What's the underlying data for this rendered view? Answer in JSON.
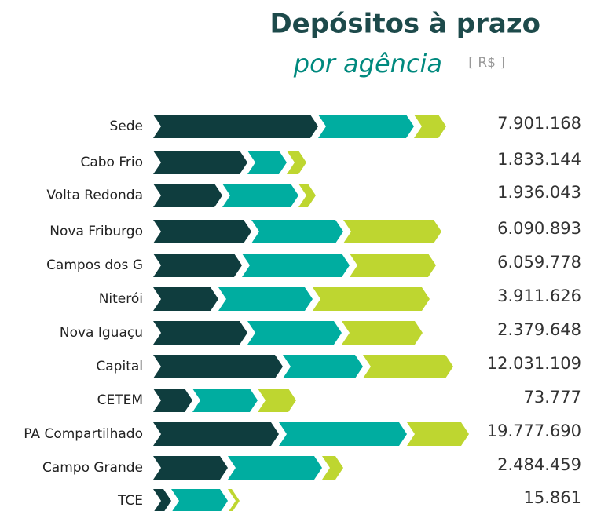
{
  "chart_data": {
    "type": "bar",
    "title": "Depósitos à prazo",
    "subtitle": "por agência",
    "unit": "[ R$ ]",
    "categories": [
      "Sede",
      "Cabo Frio",
      "Volta Redonda",
      "Nova Friburgo",
      "Campos dos G",
      "Niterói",
      "Nova Iguaçu",
      "Capital",
      "CETEM",
      "PA Compartilhado",
      "Campo Grande",
      "TCE"
    ],
    "series": [
      {
        "color": "#0f3d3e",
        "values": [
          210,
          120,
          88,
          125,
          113,
          83,
          120,
          165,
          50,
          160,
          95,
          23
        ]
      },
      {
        "color": "#00ada0",
        "values": [
          122,
          50,
          97,
          117,
          137,
          120,
          120,
          102,
          83,
          163,
          120,
          72
        ]
      },
      {
        "color": "#bed630",
        "values": [
          41,
          25,
          22,
          125,
          110,
          149,
          103,
          115,
          49,
          79,
          27,
          15
        ]
      }
    ],
    "xlim": [
      0,
      400
    ],
    "totals": [
      7901168,
      1833144,
      1936043,
      6090893,
      6059778,
      3911626,
      2379648,
      12031109,
      73777,
      19777690,
      2484459,
      15861
    ],
    "value_labels": [
      "7.901.168",
      "1.833.144",
      "1.936.043",
      "6.090.893",
      "6.059.778",
      "3.911.626",
      "2.379.648",
      "12.031.109",
      "73.777",
      "19.777.690",
      "2.484.459",
      "15.861"
    ]
  }
}
